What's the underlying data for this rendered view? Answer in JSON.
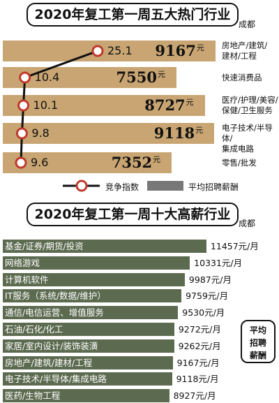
{
  "chart_data": [
    {
      "type": "bar",
      "title": "2020年复工第一周五大热门行业",
      "subtitle": "成都",
      "categories": [
        "房地产/建筑/建材/工程",
        "快速消费品",
        "医疗/护理/美容/保健/卫生服务",
        "电子技术/半导体/集成电路",
        "零售/批发"
      ],
      "category_lines": [
        [
          "房地产/建筑/",
          "建材/工程"
        ],
        [
          "快速消费品"
        ],
        [
          "医疗/护理/美容/",
          "保健/卫生服务"
        ],
        [
          "电子技术/半导体/",
          "集成电路"
        ],
        [
          "零售/批发"
        ]
      ],
      "series": [
        {
          "name": "竞争指数",
          "type": "line",
          "values": [
            25.1,
            10.4,
            10.1,
            9.8,
            9.6
          ]
        },
        {
          "name": "平均招聘薪酬",
          "type": "bar",
          "values": [
            9167,
            7550,
            8727,
            9118,
            7352
          ]
        }
      ],
      "value_labels": [
        "9167",
        "7550",
        "8727",
        "9118",
        "7352"
      ],
      "index_labels": [
        "25.1",
        "10.4",
        "10.1",
        "9.8",
        "9.6"
      ],
      "unit": "元",
      "colors": {
        "bar": "#c8a572",
        "line": "#111111",
        "marker": "#c0392b"
      }
    },
    {
      "type": "bar",
      "orientation": "horizontal",
      "title": "2020年复工第一周十大高薪行业",
      "subtitle": "成都",
      "categories": [
        "基金/证券/期货/投资",
        "网络游戏",
        "计算机软件",
        "IT服务（系统/数据/维护）",
        "通信/电信运营、增值服务",
        "石油/石化/化工",
        "家居/室内设计/装饰装潢",
        "房地产/建筑/建材/工程",
        "电子技术/半导体/集成电路",
        "医药/生物工程"
      ],
      "values": [
        11457,
        10331,
        9987,
        9759,
        9530,
        9272,
        9262,
        9167,
        9118,
        8927
      ],
      "value_labels": [
        "11457元/月",
        "10331元/月",
        "9987元/月",
        "9759元/月",
        "9530元/月",
        "9272元/月",
        "9262元/月",
        "9167元/月",
        "9118元/月",
        "8927元/月"
      ],
      "annotation": "平均招聘薪酬",
      "annotation_lines": [
        "平均",
        "招聘",
        "薪酬"
      ],
      "colors": {
        "bar": "#5c6b50",
        "label": "#ffffff"
      }
    }
  ],
  "legend": {
    "index": "竞争指数",
    "salary": "平均招聘薪酬",
    "salary_color": "#777777"
  }
}
